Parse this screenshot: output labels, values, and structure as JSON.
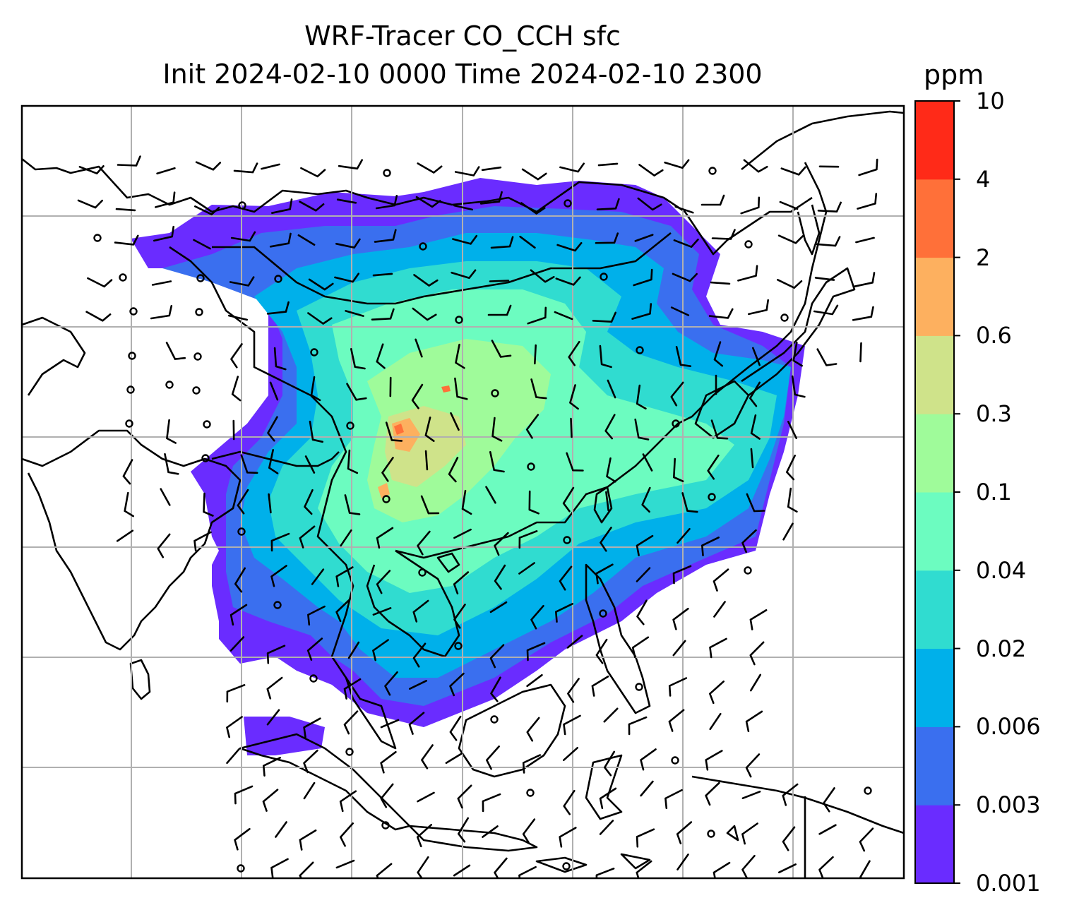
{
  "title": {
    "line1": "WRF-Tracer CO_CCH sfc",
    "line2": "Init 2024-02-10 0000 Time 2024-02-10 2300"
  },
  "colorbar": {
    "units": "ppm",
    "tick_labels": [
      "0.001",
      "0.003",
      "0.006",
      "0.02",
      "0.04",
      "0.1",
      "0.3",
      "0.6",
      "2",
      "4",
      "10"
    ],
    "colors": [
      "#6a2cff",
      "#3a6fef",
      "#00b0ea",
      "#30dcd0",
      "#6cfcc0",
      "#9ffb9a",
      "#cfe38a",
      "#fdb05f",
      "#ff7039",
      "#ff2a18"
    ]
  },
  "map": {
    "gridlines": true,
    "overlay": "wind barbs",
    "background": "#ffffff"
  }
}
